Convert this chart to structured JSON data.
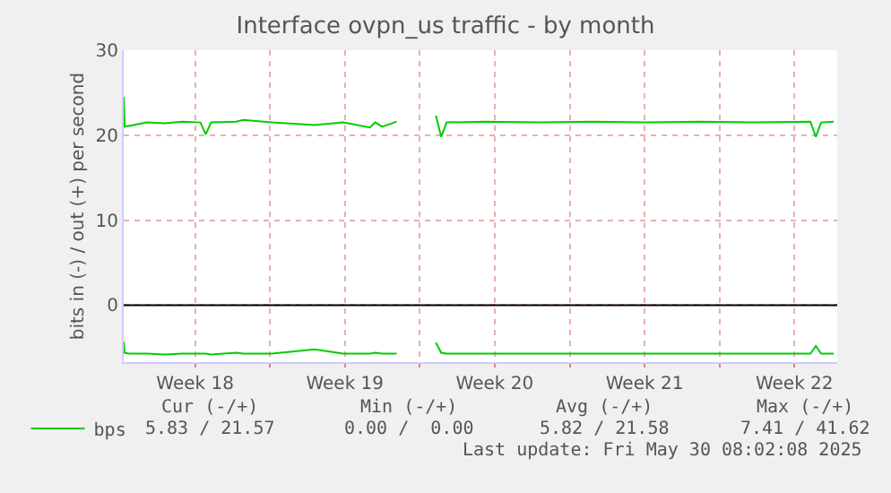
{
  "chart_data": {
    "type": "line",
    "title": "Interface ovpn_us traffic - by month",
    "ylabel": "bits in (-) / out (+) per second",
    "x": [
      "2025-04-27T04:00",
      "2025-04-27T05:00",
      "2025-04-27T10:00",
      "2025-04-28T06:00",
      "2025-04-29T02:00",
      "2025-04-29T22:00",
      "2025-04-30T18:00",
      "2025-05-01T00:00",
      "2025-05-01T06:00",
      "2025-05-02T10:00",
      "2025-05-02T18:00",
      "2025-05-04T02:00",
      "2025-05-06T02:00",
      "2025-05-07T10:00",
      "2025-05-08T16:00",
      "2025-05-08T22:00",
      "2025-05-09T06:00",
      "2025-05-09T22:00",
      "2025-05-10T16:00",
      "2025-05-11T18:00",
      "2025-05-12T00:00",
      "2025-05-12T06:00",
      "2025-05-14T02:00",
      "2025-05-16T14:00",
      "2025-05-19T02:00",
      "2025-05-21T14:00",
      "2025-05-24T02:00",
      "2025-05-26T14:00",
      "2025-05-29T06:00",
      "2025-05-29T12:00",
      "2025-05-29T18:00",
      "2025-05-30T08:00"
    ],
    "series": [
      {
        "name": "bps",
        "color": "#00cc00",
        "values": [
          24.5,
          21.0,
          21.1,
          21.5,
          21.4,
          21.6,
          21.5,
          20.1,
          21.5,
          21.6,
          21.8,
          21.5,
          21.2,
          21.5,
          20.9,
          21.5,
          21.0,
          21.6,
          null,
          22.3,
          19.8,
          21.5,
          21.6,
          21.5,
          21.6,
          21.5,
          21.6,
          21.5,
          21.6,
          19.8,
          21.5,
          21.6
        ]
      },
      {
        "color": "#00cc00",
        "values": [
          -4.3,
          -5.6,
          -5.7,
          -5.7,
          -5.8,
          -5.7,
          -5.7,
          -5.7,
          -5.8,
          -5.6,
          -5.7,
          -5.7,
          -5.2,
          -5.7,
          -5.7,
          -5.6,
          -5.7,
          -5.7,
          null,
          -4.4,
          -5.6,
          -5.7,
          -5.7,
          -5.7,
          -5.7,
          -5.7,
          -5.7,
          -5.7,
          -5.7,
          -4.8,
          -5.7,
          -5.7
        ]
      }
    ],
    "xlim": [
      "2025-04-27T04:00",
      "2025-05-30T12:00"
    ],
    "ylim": [
      -6.7,
      30
    ],
    "xticks": [
      {
        "value": "2025-04-30T12:00",
        "label": "Week 18"
      },
      {
        "value": "2025-05-04",
        "label": null
      },
      {
        "value": "2025-05-07T12:00",
        "label": "Week 19"
      },
      {
        "value": "2025-05-11",
        "label": null
      },
      {
        "value": "2025-05-14T12:00",
        "label": "Week 20"
      },
      {
        "value": "2025-05-18",
        "label": null
      },
      {
        "value": "2025-05-21T12:00",
        "label": "Week 21"
      },
      {
        "value": "2025-05-25",
        "label": null
      },
      {
        "value": "2025-05-28T12:00",
        "label": "Week 22"
      }
    ],
    "yticks": [
      0,
      10,
      20,
      30
    ],
    "ref_lines": [
      {
        "axis": "y",
        "value": 0,
        "color": "#000000"
      }
    ],
    "grid": true,
    "legend": "bottom left",
    "marker": "none",
    "line_style": "solid",
    "annotations": [
      "Cur (-/+)",
      "Min (-/+)",
      "Avg (-/+)",
      "Max (-/+)",
      "5.83 / 21.57",
      "0.00 /  0.00",
      "5.82 / 21.58",
      "7.41 / 41.62",
      "Last update: Fri May 30 08:02:08 2025"
    ]
  }
}
